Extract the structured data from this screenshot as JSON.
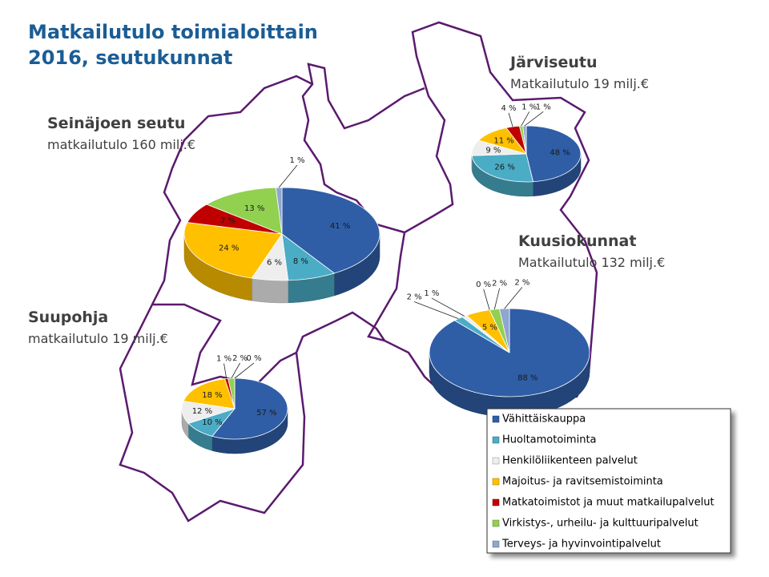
{
  "title": [
    "Matkailutulo toimialoittain",
    "2016, seutukunnat"
  ],
  "legend": {
    "categories": [
      "Vähittäiskauppa",
      "Huoltamotoiminta",
      "Henkilöliikenteen palvelut",
      "Majoitus- ja ravitsemistoiminta",
      "Matkatoimistot ja muut matkailupalvelut",
      "Virkistys-, urheilu- ja kulttuuripalvelut",
      "Terveys- ja hyvinvointipalvelut"
    ],
    "colors": [
      "#2f5ea7",
      "#4bacc6",
      "#eeeeee",
      "#ffc000",
      "#c00000",
      "#92d050",
      "#8fa6cf"
    ]
  },
  "chart_data": [
    {
      "type": "pie",
      "title": "Seinäjoen seutu",
      "subtitle": "matkailutulo 160 milj.€",
      "values": [
        41,
        8,
        6,
        24,
        7,
        13,
        1
      ],
      "value_labels": [
        "41 %",
        "8 %",
        "6 %",
        "24 %",
        "7 %",
        "13 %",
        "1 %"
      ]
    },
    {
      "type": "pie",
      "title": "Järviseutu",
      "subtitle": "Matkailutulo 19 milj.€",
      "values": [
        48,
        26,
        9,
        11,
        4,
        1,
        1
      ],
      "value_labels": [
        "48 %",
        "26 %",
        "9 %",
        "11 %",
        "4 %",
        "1 %",
        "1 %"
      ]
    },
    {
      "type": "pie",
      "title": "Kuusiokunnat",
      "subtitle": "Matkailutulo 132 milj.€",
      "values": [
        88,
        2,
        1,
        5,
        0,
        2,
        2
      ],
      "value_labels": [
        "88 %",
        "2 %",
        "1 %",
        "5 %",
        "0 %",
        "2 %",
        "2 %"
      ]
    },
    {
      "type": "pie",
      "title": "Suupohja",
      "subtitle": "matkailutulo 19 milj.€",
      "values": [
        57,
        10,
        12,
        18,
        1,
        2,
        0
      ],
      "value_labels": [
        "57 %",
        "10 %",
        "12 %",
        "18 %",
        "1 %",
        "2 %",
        "0 %"
      ]
    }
  ]
}
